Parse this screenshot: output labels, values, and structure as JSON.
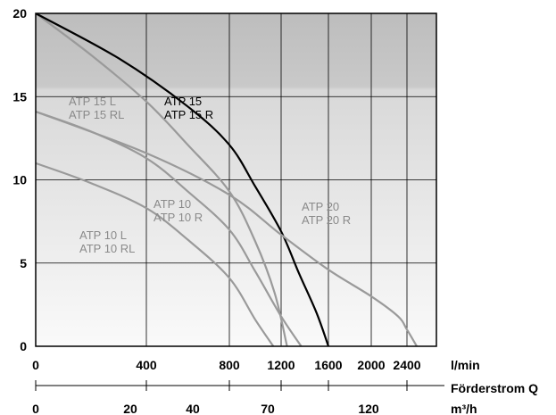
{
  "chart_data": {
    "type": "line",
    "y_ticks": [
      "0",
      "5",
      "10",
      "15",
      "20"
    ],
    "y_range": [
      0,
      20
    ],
    "x_ticks_lmin": [
      "0",
      "400",
      "800",
      "1200",
      "1600",
      "2000",
      "2400"
    ],
    "x_unit_lmin": "l/min",
    "x_title_m3h": "Förderstrom Q",
    "x_unit_m3h": "m³/h",
    "x_ticks_m3h": [
      "0",
      "20",
      "40",
      "70",
      "120"
    ],
    "background": "vertical grey gradient",
    "grid": true,
    "series": [
      {
        "label_lines": [
          "ATP 15 L",
          "ATP 15 RL"
        ],
        "color": "#9a9a9a",
        "points": [
          [
            0,
            20
          ],
          [
            200,
            17.5
          ],
          [
            400,
            14.7
          ],
          [
            600,
            12.1
          ],
          [
            800,
            9.3
          ],
          [
            1000,
            6.3
          ],
          [
            1150,
            3.2
          ],
          [
            1250,
            0
          ]
        ]
      },
      {
        "label_lines": [
          "ATP 15",
          "ATP 15 R"
        ],
        "color": "#000000",
        "points": [
          [
            0,
            20
          ],
          [
            300,
            17.3
          ],
          [
            600,
            14.4
          ],
          [
            800,
            12.1
          ],
          [
            1000,
            9.6
          ],
          [
            1200,
            6.9
          ],
          [
            1350,
            4.4
          ],
          [
            1500,
            2.0
          ],
          [
            1600,
            0
          ]
        ]
      },
      {
        "label_lines": [
          "ATP 10",
          "ATP 10 R"
        ],
        "color": "#9a9a9a",
        "points": [
          [
            0,
            14.1
          ],
          [
            200,
            12.9
          ],
          [
            400,
            11.3
          ],
          [
            600,
            9.3
          ],
          [
            800,
            7.0
          ],
          [
            1000,
            4.5
          ],
          [
            1200,
            1.8
          ],
          [
            1370,
            0
          ]
        ]
      },
      {
        "label_lines": [
          "ATP 10 L",
          "ATP 10 RL"
        ],
        "color": "#9a9a9a",
        "points": [
          [
            0,
            11.0
          ],
          [
            200,
            9.8
          ],
          [
            400,
            8.3
          ],
          [
            600,
            6.4
          ],
          [
            800,
            4.1
          ],
          [
            1000,
            1.6
          ],
          [
            1140,
            0
          ]
        ]
      },
      {
        "label_lines": [
          "ATP 20",
          "ATP 20 R"
        ],
        "color": "#9a9a9a",
        "points": [
          [
            0,
            14.1
          ],
          [
            400,
            11.6
          ],
          [
            800,
            9.1
          ],
          [
            1200,
            6.7
          ],
          [
            1600,
            4.6
          ],
          [
            2000,
            3.0
          ],
          [
            2300,
            1.8
          ],
          [
            2400,
            1.0
          ],
          [
            2440,
            0
          ]
        ]
      }
    ]
  }
}
